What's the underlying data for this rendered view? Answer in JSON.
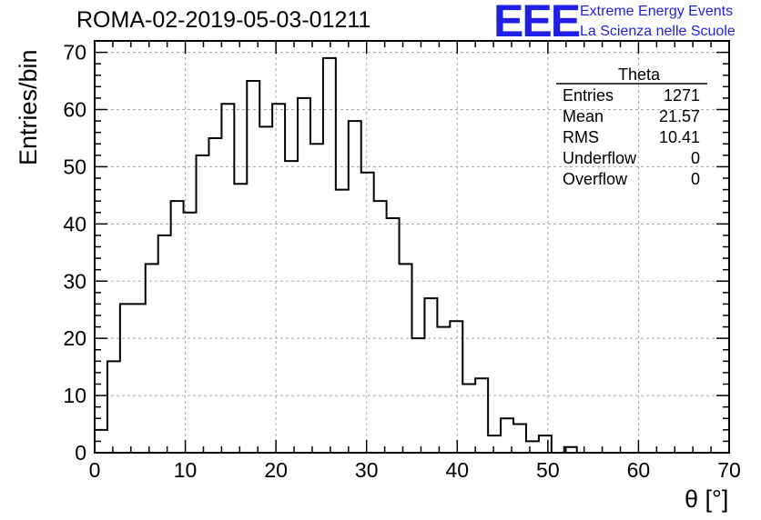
{
  "title": "ROMA-02-2019-05-03-01211",
  "logo": {
    "mark": "EEE",
    "line1": "Extreme Energy Events",
    "line2": "La Scienza nelle Scuole",
    "color": "#1f1fe6"
  },
  "stats_box": {
    "name": "Theta",
    "rows": [
      {
        "label": "Entries",
        "value": "1271"
      },
      {
        "label": "Mean",
        "value": "21.57"
      },
      {
        "label": "RMS",
        "value": "10.41"
      },
      {
        "label": "Underflow",
        "value": "0"
      },
      {
        "label": "Overflow",
        "value": "0"
      }
    ]
  },
  "chart_data": {
    "type": "histogram",
    "xlabel": "θ [°]",
    "ylabel": "Entries/bin",
    "xlim": [
      0,
      70
    ],
    "ylim": [
      0,
      72
    ],
    "xticks": [
      0,
      10,
      20,
      30,
      40,
      50,
      60,
      70
    ],
    "yticks": [
      0,
      10,
      20,
      30,
      40,
      50,
      60,
      70
    ],
    "grid": true,
    "bin_width": 1.4,
    "bin_start": 0,
    "values": [
      4,
      16,
      26,
      26,
      33,
      38,
      44,
      42,
      52,
      55,
      61,
      47,
      65,
      57,
      61,
      51,
      62,
      54,
      69,
      46,
      58,
      49,
      44,
      41,
      33,
      20,
      27,
      22,
      23,
      12,
      13,
      3,
      6,
      5,
      2,
      3,
      0,
      1,
      0,
      0,
      0,
      0,
      0,
      0,
      0,
      0,
      0,
      0,
      0,
      0
    ]
  }
}
